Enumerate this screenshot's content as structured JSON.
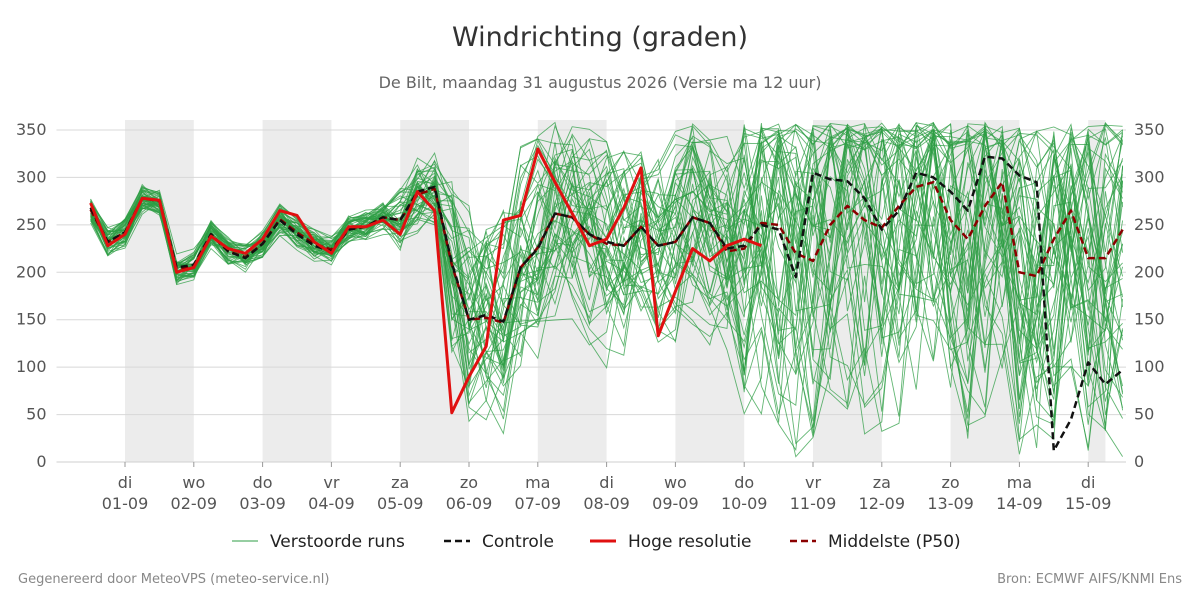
{
  "header": {
    "title": "Windrichting (graden)",
    "subtitle": "De Bilt, maandag 31 augustus 2026 (Versie ma 12 uur)"
  },
  "footer": {
    "left": "Gegenereerd door MeteoVPS (meteo-service.nl)",
    "right": "Bron: ECMWF AIFS/KNMI Ens"
  },
  "colors": {
    "ensemble": "#2e9e44",
    "control": "#111111",
    "hires": "#e01010",
    "median": "#8b0000",
    "weekend_band": "#ececec",
    "grid": "#d8d8d8"
  },
  "chart_data": {
    "type": "line",
    "title": "Windrichting (graden)",
    "ylim": [
      0,
      360
    ],
    "yticks": [
      0,
      50,
      100,
      150,
      200,
      250,
      300,
      350
    ],
    "xlim_day": [
      0.25,
      15.25
    ],
    "grid": "horizontal",
    "legend_position": "bottom",
    "x_ticks": [
      {
        "day": 1,
        "top": "di",
        "bottom": "01-09"
      },
      {
        "day": 2,
        "top": "wo",
        "bottom": "02-09"
      },
      {
        "day": 3,
        "top": "do",
        "bottom": "03-09"
      },
      {
        "day": 4,
        "top": "vr",
        "bottom": "04-09"
      },
      {
        "day": 5,
        "top": "za",
        "bottom": "05-09"
      },
      {
        "day": 6,
        "top": "zo",
        "bottom": "06-09"
      },
      {
        "day": 7,
        "top": "ma",
        "bottom": "07-09"
      },
      {
        "day": 8,
        "top": "di",
        "bottom": "08-09"
      },
      {
        "day": 9,
        "top": "wo",
        "bottom": "09-09"
      },
      {
        "day": 10,
        "top": "do",
        "bottom": "10-09"
      },
      {
        "day": 11,
        "top": "vr",
        "bottom": "11-09"
      },
      {
        "day": 12,
        "top": "za",
        "bottom": "12-09"
      },
      {
        "day": 13,
        "top": "zo",
        "bottom": "13-09"
      },
      {
        "day": 14,
        "top": "ma",
        "bottom": "14-09"
      },
      {
        "day": 15,
        "top": "di",
        "bottom": "15-09"
      }
    ],
    "shaded_days": [
      [
        1,
        2
      ],
      [
        3,
        4
      ],
      [
        5,
        6
      ],
      [
        7,
        8
      ],
      [
        9,
        10
      ],
      [
        11,
        12
      ],
      [
        13,
        14
      ],
      [
        15,
        15.25
      ]
    ],
    "legend": [
      "Verstoorde runs",
      "Controle",
      "Hoge resolutie",
      "Middelste (P50)"
    ],
    "series": [
      {
        "name": "Controle",
        "style": "dashed",
        "points": [
          [
            0.5,
            268
          ],
          [
            0.75,
            232
          ],
          [
            1.0,
            242
          ],
          [
            1.25,
            278
          ],
          [
            1.5,
            276
          ],
          [
            1.75,
            205
          ],
          [
            2.0,
            208
          ],
          [
            2.25,
            240
          ],
          [
            2.5,
            222
          ],
          [
            2.75,
            215
          ],
          [
            3.0,
            230
          ],
          [
            3.25,
            255
          ],
          [
            3.5,
            240
          ],
          [
            3.75,
            228
          ],
          [
            4.0,
            222
          ],
          [
            4.25,
            245
          ],
          [
            4.5,
            248
          ],
          [
            4.75,
            258
          ],
          [
            5.0,
            255
          ],
          [
            5.25,
            285
          ],
          [
            5.5,
            290
          ],
          [
            5.75,
            210
          ],
          [
            6.0,
            150
          ],
          [
            6.25,
            155
          ],
          [
            6.5,
            148
          ],
          [
            6.75,
            205
          ],
          [
            7.0,
            225
          ],
          [
            7.25,
            262
          ],
          [
            7.5,
            258
          ],
          [
            7.75,
            240
          ],
          [
            8.0,
            232
          ],
          [
            8.25,
            228
          ],
          [
            8.5,
            248
          ],
          [
            8.75,
            228
          ],
          [
            9.0,
            232
          ],
          [
            9.25,
            258
          ],
          [
            9.5,
            252
          ],
          [
            9.75,
            225
          ],
          [
            10.0,
            228
          ],
          [
            10.25,
            250
          ],
          [
            10.5,
            245
          ],
          [
            10.75,
            195
          ],
          [
            11.0,
            305
          ],
          [
            11.25,
            298
          ],
          [
            11.5,
            296
          ],
          [
            11.75,
            278
          ],
          [
            12.0,
            245
          ],
          [
            12.25,
            265
          ],
          [
            12.5,
            305
          ],
          [
            12.75,
            300
          ],
          [
            13.0,
            285
          ],
          [
            13.25,
            265
          ],
          [
            13.5,
            322
          ],
          [
            13.75,
            320
          ],
          [
            14.0,
            302
          ],
          [
            14.25,
            295
          ],
          [
            14.5,
            12
          ],
          [
            14.75,
            45
          ],
          [
            15.0,
            105
          ],
          [
            15.25,
            82
          ],
          [
            15.5,
            97
          ]
        ]
      },
      {
        "name": "Hoge resolutie",
        "style": "solid",
        "points": [
          [
            0.5,
            273
          ],
          [
            0.75,
            228
          ],
          [
            1.0,
            240
          ],
          [
            1.25,
            278
          ],
          [
            1.5,
            276
          ],
          [
            1.75,
            200
          ],
          [
            2.0,
            205
          ],
          [
            2.25,
            238
          ],
          [
            2.5,
            225
          ],
          [
            2.75,
            220
          ],
          [
            3.0,
            235
          ],
          [
            3.25,
            265
          ],
          [
            3.5,
            260
          ],
          [
            3.75,
            232
          ],
          [
            4.0,
            220
          ],
          [
            4.25,
            248
          ],
          [
            4.5,
            248
          ],
          [
            4.75,
            255
          ],
          [
            5.0,
            240
          ],
          [
            5.25,
            285
          ],
          [
            5.5,
            265
          ],
          [
            5.75,
            52
          ],
          [
            6.0,
            90
          ],
          [
            6.25,
            122
          ],
          [
            6.5,
            255
          ],
          [
            6.75,
            260
          ],
          [
            7.0,
            330
          ],
          [
            7.25,
            295
          ],
          [
            7.5,
            262
          ],
          [
            7.75,
            228
          ],
          [
            8.0,
            235
          ],
          [
            8.25,
            268
          ],
          [
            8.5,
            310
          ],
          [
            8.75,
            133
          ],
          [
            9.0,
            180
          ],
          [
            9.25,
            225
          ],
          [
            9.5,
            212
          ],
          [
            9.75,
            228
          ],
          [
            10.0,
            235
          ],
          [
            10.25,
            228
          ]
        ]
      },
      {
        "name": "Middelste (P50)",
        "style": "dashed",
        "points": [
          [
            0.5,
            266
          ],
          [
            0.75,
            232
          ],
          [
            1.0,
            242
          ],
          [
            1.25,
            278
          ],
          [
            1.5,
            275
          ],
          [
            1.75,
            203
          ],
          [
            2.0,
            207
          ],
          [
            2.25,
            240
          ],
          [
            2.5,
            222
          ],
          [
            2.75,
            216
          ],
          [
            3.0,
            230
          ],
          [
            3.25,
            256
          ],
          [
            3.5,
            242
          ],
          [
            3.75,
            230
          ],
          [
            4.0,
            224
          ],
          [
            4.25,
            246
          ],
          [
            4.5,
            248
          ],
          [
            4.75,
            258
          ],
          [
            5.0,
            255
          ],
          [
            5.25,
            282
          ],
          [
            5.5,
            288
          ],
          [
            5.75,
            208
          ],
          [
            6.0,
            150
          ],
          [
            6.25,
            152
          ],
          [
            6.5,
            147
          ],
          [
            6.75,
            205
          ],
          [
            7.0,
            226
          ],
          [
            7.25,
            262
          ],
          [
            7.5,
            258
          ],
          [
            7.75,
            240
          ],
          [
            8.0,
            230
          ],
          [
            8.25,
            228
          ],
          [
            8.5,
            248
          ],
          [
            8.75,
            228
          ],
          [
            9.0,
            232
          ],
          [
            9.25,
            258
          ],
          [
            9.5,
            252
          ],
          [
            9.75,
            222
          ],
          [
            10.0,
            225
          ],
          [
            10.25,
            252
          ],
          [
            10.5,
            250
          ],
          [
            10.75,
            220
          ],
          [
            11.0,
            212
          ],
          [
            11.25,
            250
          ],
          [
            11.5,
            270
          ],
          [
            11.75,
            255
          ],
          [
            12.0,
            247
          ],
          [
            12.25,
            270
          ],
          [
            12.5,
            290
          ],
          [
            12.75,
            295
          ],
          [
            13.0,
            255
          ],
          [
            13.25,
            235
          ],
          [
            13.5,
            270
          ],
          [
            13.75,
            295
          ],
          [
            14.0,
            200
          ],
          [
            14.25,
            196
          ],
          [
            14.5,
            235
          ],
          [
            14.75,
            265
          ],
          [
            15.0,
            215
          ],
          [
            15.25,
            215
          ],
          [
            15.5,
            245
          ]
        ]
      }
    ]
  }
}
